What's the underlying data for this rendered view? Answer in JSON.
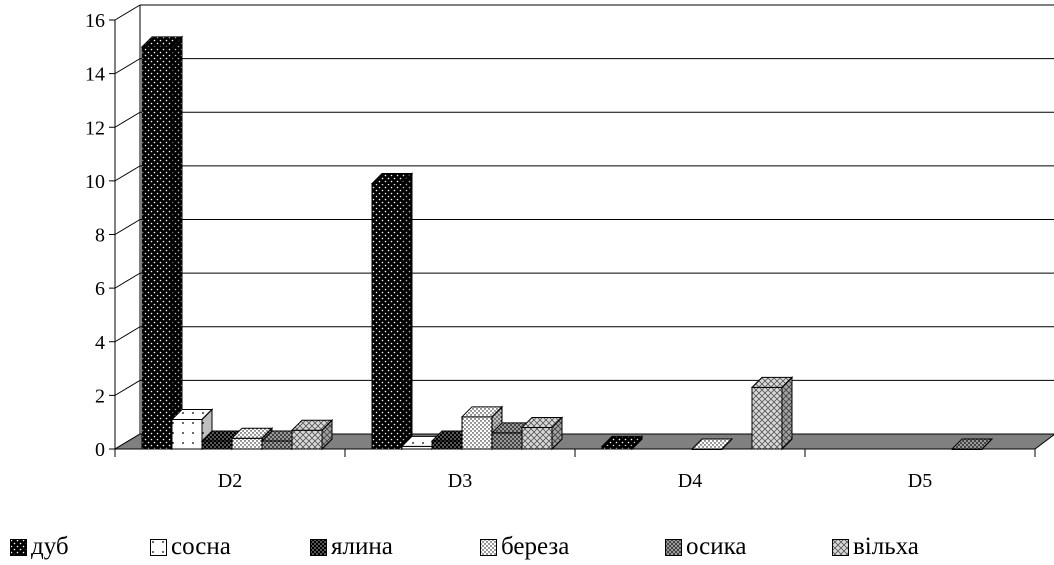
{
  "chart_data": {
    "type": "bar",
    "three_d": true,
    "categories": [
      "D2",
      "D3",
      "D4",
      "D5"
    ],
    "series": [
      {
        "name": "дуб",
        "values": [
          15.0,
          9.9,
          0.1,
          0
        ],
        "pattern": "dots-on-black"
      },
      {
        "name": "сосна",
        "values": [
          1.1,
          0.1,
          0,
          0
        ],
        "pattern": "sparse-dots-on-white"
      },
      {
        "name": "ялина",
        "values": [
          0.3,
          0.3,
          0,
          0
        ],
        "pattern": "checker-dark"
      },
      {
        "name": "береза",
        "values": [
          0.4,
          1.2,
          0,
          0
        ],
        "pattern": "dots-on-white"
      },
      {
        "name": "осика",
        "values": [
          0.3,
          0.6,
          0,
          0
        ],
        "pattern": "checker-grey"
      },
      {
        "name": "вільха",
        "values": [
          0.7,
          0.8,
          2.3,
          0
        ],
        "pattern": "crosshatch-light"
      }
    ],
    "y_ticks": [
      "0",
      "2",
      "4",
      "6",
      "8",
      "10",
      "12",
      "14",
      "16"
    ],
    "ylim": [
      0,
      16
    ],
    "grid": true,
    "legend_position": "bottom",
    "colors": {
      "floor": "#808080",
      "gridline": "#000000",
      "bar_edge": "#000000"
    }
  }
}
